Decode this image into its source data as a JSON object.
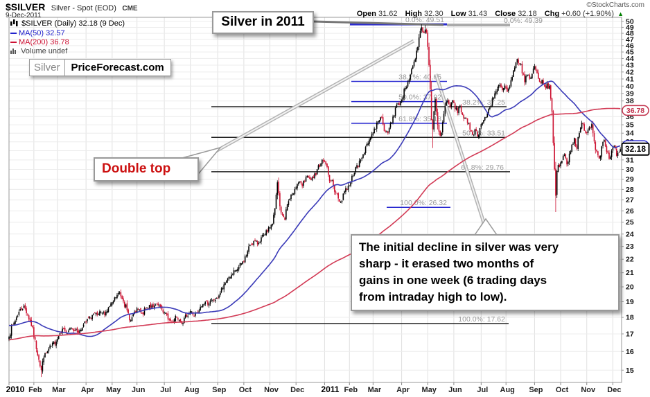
{
  "header": {
    "symbol": "$SILVER",
    "name": "Silver - Spot (EOD)",
    "exchange": "CME",
    "date": "9-Dec-2011",
    "credit": "©StockCharts.com",
    "quote": {
      "open_label": "Open",
      "open": "31.62",
      "high_label": "High",
      "high": "32.30",
      "low_label": "Low",
      "low": "31.43",
      "close_label": "Close",
      "close": "32.18",
      "chg_label": "Chg",
      "chg": "+0.60 (+1.90%)",
      "chg_dir": "▲"
    }
  },
  "legend": {
    "series": "$SILVER (Daily) 32.18 (9 Dec)",
    "ma50": "MA(50) 32.57",
    "ma200": "MA(200) 36.78",
    "volume": "Volume undef"
  },
  "watermark": {
    "left": "Silver",
    "right": "PriceForecast.com"
  },
  "callouts": {
    "title": "Silver in 2011",
    "double_top": "Double top",
    "note": "The initial decline in silver was very\nsharp - it erased two months of\ngains in one week (6 trading days\nfrom intraday high to low)."
  },
  "chart_data": {
    "type": "candlestick",
    "title": "Silver in 2011",
    "y_axis": {
      "scale": "log",
      "unit": "USD",
      "tick_min": 15,
      "tick_max": 50,
      "tick_step": 1
    },
    "x_axis": {
      "months": [
        [
          "2010",
          0,
          1
        ],
        [
          "Feb",
          20,
          0
        ],
        [
          "Mar",
          39,
          0
        ],
        [
          "Apr",
          62,
          0
        ],
        [
          "May",
          83,
          0
        ],
        [
          "Jun",
          103,
          0
        ],
        [
          "Jul",
          125,
          0
        ],
        [
          "Aug",
          146,
          0
        ],
        [
          "Sep",
          168,
          0
        ],
        [
          "Oct",
          189,
          0
        ],
        [
          "Nov",
          210,
          0
        ],
        [
          "Dec",
          231,
          0
        ],
        [
          "2011",
          254,
          1
        ],
        [
          "Feb",
          274,
          0
        ],
        [
          "Mar",
          293,
          0
        ],
        [
          "Apr",
          316,
          0
        ],
        [
          "May",
          337,
          0
        ],
        [
          "Jun",
          358,
          0
        ],
        [
          "Jul",
          380,
          0
        ],
        [
          "Aug",
          400,
          0
        ],
        [
          "Sep",
          423,
          0
        ],
        [
          "Oct",
          444,
          0
        ],
        [
          "Nov",
          465,
          0
        ],
        [
          "Dec",
          486,
          0
        ]
      ],
      "total_days": 493
    },
    "up_color": "#000000",
    "down_color": "#cc1130",
    "anchors": [
      [
        0,
        16.9
      ],
      [
        3,
        17.5
      ],
      [
        6,
        18.0
      ],
      [
        9,
        18.5
      ],
      [
        12,
        18.7
      ],
      [
        15,
        18.2
      ],
      [
        18,
        17.5
      ],
      [
        21,
        16.6
      ],
      [
        24,
        15.6
      ],
      [
        26,
        15.0
      ],
      [
        28,
        15.7
      ],
      [
        31,
        16.0
      ],
      [
        34,
        16.3
      ],
      [
        38,
        16.6
      ],
      [
        41,
        17.1
      ],
      [
        44,
        17.3
      ],
      [
        47,
        17.0
      ],
      [
        50,
        17.4
      ],
      [
        53,
        17.2
      ],
      [
        56,
        17.1
      ],
      [
        59,
        17.4
      ],
      [
        62,
        17.7
      ],
      [
        65,
        18.0
      ],
      [
        68,
        18.2
      ],
      [
        71,
        18.1
      ],
      [
        74,
        18.3
      ],
      [
        77,
        18.2
      ],
      [
        80,
        18.6
      ],
      [
        83,
        18.9
      ],
      [
        86,
        19.3
      ],
      [
        89,
        19.6
      ],
      [
        92,
        19.1
      ],
      [
        95,
        18.4
      ],
      [
        98,
        17.8
      ],
      [
        101,
        18.3
      ],
      [
        104,
        18.5
      ],
      [
        107,
        18.2
      ],
      [
        110,
        18.5
      ],
      [
        113,
        18.8
      ],
      [
        116,
        18.6
      ],
      [
        119,
        18.8
      ],
      [
        122,
        18.6
      ],
      [
        125,
        18.3
      ],
      [
        128,
        17.9
      ],
      [
        131,
        17.7
      ],
      [
        134,
        18.1
      ],
      [
        137,
        17.9
      ],
      [
        140,
        17.7
      ],
      [
        143,
        18.1
      ],
      [
        146,
        18.4
      ],
      [
        149,
        18.1
      ],
      [
        152,
        18.3
      ],
      [
        155,
        18.7
      ],
      [
        158,
        19.0
      ],
      [
        161,
        18.9
      ],
      [
        164,
        19.1
      ],
      [
        167,
        19.2
      ],
      [
        170,
        19.6
      ],
      [
        173,
        20.1
      ],
      [
        176,
        20.6
      ],
      [
        179,
        20.8
      ],
      [
        182,
        21.1
      ],
      [
        185,
        21.4
      ],
      [
        188,
        21.8
      ],
      [
        191,
        22.3
      ],
      [
        194,
        23.1
      ],
      [
        197,
        23.4
      ],
      [
        200,
        23.2
      ],
      [
        203,
        23.7
      ],
      [
        206,
        23.9
      ],
      [
        209,
        24.5
      ],
      [
        212,
        24.9
      ],
      [
        214,
        26.1
      ],
      [
        216,
        28.6
      ],
      [
        218,
        26.4
      ],
      [
        220,
        25.6
      ],
      [
        222,
        25.3
      ],
      [
        224,
        26.6
      ],
      [
        226,
        27.1
      ],
      [
        228,
        27.5
      ],
      [
        230,
        28.1
      ],
      [
        233,
        28.7
      ],
      [
        236,
        28.3
      ],
      [
        239,
        29.2
      ],
      [
        242,
        29.0
      ],
      [
        245,
        29.0
      ],
      [
        248,
        30.1
      ],
      [
        251,
        30.7
      ],
      [
        253,
        30.9
      ],
      [
        255,
        30.6
      ],
      [
        257,
        29.4
      ],
      [
        259,
        28.8
      ],
      [
        261,
        28.4
      ],
      [
        263,
        27.7
      ],
      [
        265,
        27.1
      ],
      [
        267,
        26.8
      ],
      [
        269,
        27.6
      ],
      [
        271,
        28.1
      ],
      [
        273,
        28.3
      ],
      [
        275,
        28.7
      ],
      [
        277,
        29.5
      ],
      [
        279,
        30.2
      ],
      [
        281,
        30.3
      ],
      [
        283,
        31.0
      ],
      [
        285,
        31.7
      ],
      [
        287,
        32.3
      ],
      [
        289,
        32.9
      ],
      [
        291,
        33.6
      ],
      [
        293,
        34.1
      ],
      [
        295,
        34.6
      ],
      [
        297,
        35.5
      ],
      [
        299,
        36.0
      ],
      [
        301,
        35.2
      ],
      [
        303,
        34.1
      ],
      [
        305,
        34.0
      ],
      [
        307,
        35.1
      ],
      [
        309,
        36.0
      ],
      [
        311,
        37.1
      ],
      [
        313,
        37.6
      ],
      [
        315,
        37.9
      ],
      [
        317,
        38.6
      ],
      [
        319,
        39.8
      ],
      [
        321,
        40.6
      ],
      [
        323,
        41.5
      ],
      [
        325,
        42.7
      ],
      [
        327,
        43.8
      ],
      [
        329,
        45.7
      ],
      [
        331,
        48.3
      ],
      [
        332,
        49.1
      ],
      [
        333,
        48.2
      ],
      [
        334,
        48.0
      ],
      [
        335,
        48.7
      ],
      [
        336,
        48.4
      ],
      [
        337,
        45.8
      ],
      [
        338,
        42.9
      ],
      [
        339,
        39.4
      ],
      [
        340,
        35.6
      ],
      [
        341,
        34.3
      ],
      [
        342,
        36.8
      ],
      [
        343,
        38.1
      ],
      [
        345,
        35.0
      ],
      [
        347,
        33.6
      ],
      [
        349,
        35.3
      ],
      [
        351,
        37.3
      ],
      [
        353,
        38.2
      ],
      [
        355,
        37.1
      ],
      [
        357,
        38.1
      ],
      [
        359,
        37.0
      ],
      [
        361,
        36.6
      ],
      [
        363,
        37.4
      ],
      [
        365,
        36.2
      ],
      [
        367,
        35.7
      ],
      [
        369,
        35.2
      ],
      [
        371,
        34.5
      ],
      [
        373,
        33.9
      ],
      [
        375,
        34.4
      ],
      [
        377,
        33.7
      ],
      [
        379,
        34.6
      ],
      [
        381,
        35.3
      ],
      [
        383,
        35.8
      ],
      [
        385,
        36.4
      ],
      [
        387,
        37.2
      ],
      [
        389,
        38.3
      ],
      [
        391,
        39.0
      ],
      [
        393,
        39.6
      ],
      [
        395,
        40.1
      ],
      [
        397,
        39.4
      ],
      [
        399,
        40.0
      ],
      [
        401,
        39.2
      ],
      [
        403,
        39.9
      ],
      [
        405,
        41.2
      ],
      [
        407,
        42.5
      ],
      [
        409,
        43.9
      ],
      [
        411,
        43.3
      ],
      [
        413,
        41.9
      ],
      [
        415,
        40.7
      ],
      [
        417,
        41.6
      ],
      [
        419,
        41.1
      ],
      [
        421,
        41.8
      ],
      [
        423,
        42.8
      ],
      [
        425,
        42.0
      ],
      [
        427,
        40.5
      ],
      [
        429,
        41.0
      ],
      [
        431,
        39.9
      ],
      [
        433,
        40.3
      ],
      [
        435,
        39.8
      ],
      [
        436,
        38.3
      ],
      [
        437,
        36.2
      ],
      [
        438,
        32.8
      ],
      [
        439,
        30.1
      ],
      [
        440,
        27.2
      ],
      [
        441,
        29.9
      ],
      [
        442,
        30.5
      ],
      [
        443,
        30.2
      ],
      [
        445,
        30.9
      ],
      [
        447,
        31.6
      ],
      [
        449,
        30.6
      ],
      [
        451,
        31.7
      ],
      [
        453,
        32.6
      ],
      [
        455,
        33.5
      ],
      [
        457,
        32.3
      ],
      [
        459,
        33.9
      ],
      [
        461,
        35.2
      ],
      [
        463,
        34.4
      ],
      [
        465,
        34.1
      ],
      [
        467,
        34.7
      ],
      [
        469,
        35.1
      ],
      [
        471,
        33.2
      ],
      [
        473,
        31.9
      ],
      [
        475,
        31.2
      ],
      [
        477,
        32.5
      ],
      [
        479,
        33.1
      ],
      [
        481,
        31.8
      ],
      [
        483,
        31.0
      ],
      [
        485,
        31.9
      ],
      [
        487,
        32.4
      ],
      [
        489,
        31.4
      ],
      [
        490,
        31.7
      ],
      [
        491,
        31.9
      ],
      [
        492,
        32.18
      ]
    ],
    "wick_lows": [
      [
        26,
        14.65
      ],
      [
        341,
        32.3
      ],
      [
        440,
        25.9
      ]
    ],
    "wick_highs": [
      [
        332,
        49.51
      ],
      [
        335,
        49.39
      ]
    ],
    "moving_averages": [
      {
        "period": 50,
        "color": "#3a3ab8",
        "last": "32.57"
      },
      {
        "period": 200,
        "color": "#d23a55",
        "last": "36.78"
      }
    ],
    "fib_sets": [
      {
        "line_color": "#2a2ad0",
        "label_color": "#999999",
        "levels": [
          {
            "text": "0.0%: 49.51",
            "value": 49.51,
            "x1": 505,
            "x2": 645,
            "lx": 641,
            "thick": 3
          },
          {
            "text": "38.2%: 40.65",
            "value": 40.65,
            "x1": 507,
            "x2": 645,
            "lx": 637,
            "thick": 1.5
          },
          {
            "text": "50.0%: 37.92",
            "value": 37.92,
            "x1": 507,
            "x2": 645,
            "lx": 637,
            "thick": 1.5
          },
          {
            "text": "61.8%: 35.18",
            "value": 35.18,
            "x1": 507,
            "x2": 645,
            "lx": 637,
            "thick": 1.5
          },
          {
            "text": "100.0%: 26.32",
            "value": 26.32,
            "x1": 558,
            "x2": 650,
            "lx": 645,
            "thick": 1.5
          }
        ]
      },
      {
        "line_color": "#222222",
        "label_color": "#999999",
        "levels": [
          {
            "text": "0.0%: 49.39",
            "value": 49.39,
            "x1": 645,
            "x2": 736,
            "lx": 783,
            "thick": 4,
            "lc": "#aaaaaa"
          },
          {
            "text": "38.2%: 37.25",
            "value": 37.25,
            "x1": 305,
            "x2": 731,
            "lx": 729,
            "thick": 1.5
          },
          {
            "text": "50.0%: 33.51",
            "value": 33.51,
            "x1": 305,
            "x2": 731,
            "lx": 729,
            "thick": 1.5
          },
          {
            "text": "61.8%: 29.76",
            "value": 29.76,
            "x1": 305,
            "x2": 736,
            "lx": 727,
            "thick": 1.5
          },
          {
            "text": "100.0%: 17.62",
            "value": 17.62,
            "x1": 305,
            "x2": 734,
            "lx": 729,
            "thick": 1.5
          }
        ]
      }
    ],
    "price_labels": [
      {
        "text": "36.78",
        "value": 36.78,
        "color": "#c2344e",
        "style": "oval"
      },
      {
        "text": "32.57",
        "value": 32.57,
        "color": "#2a2ad0",
        "style": "oval"
      },
      {
        "text": "32.18",
        "value": 32.18,
        "color": "#000000",
        "style": "box"
      }
    ]
  }
}
